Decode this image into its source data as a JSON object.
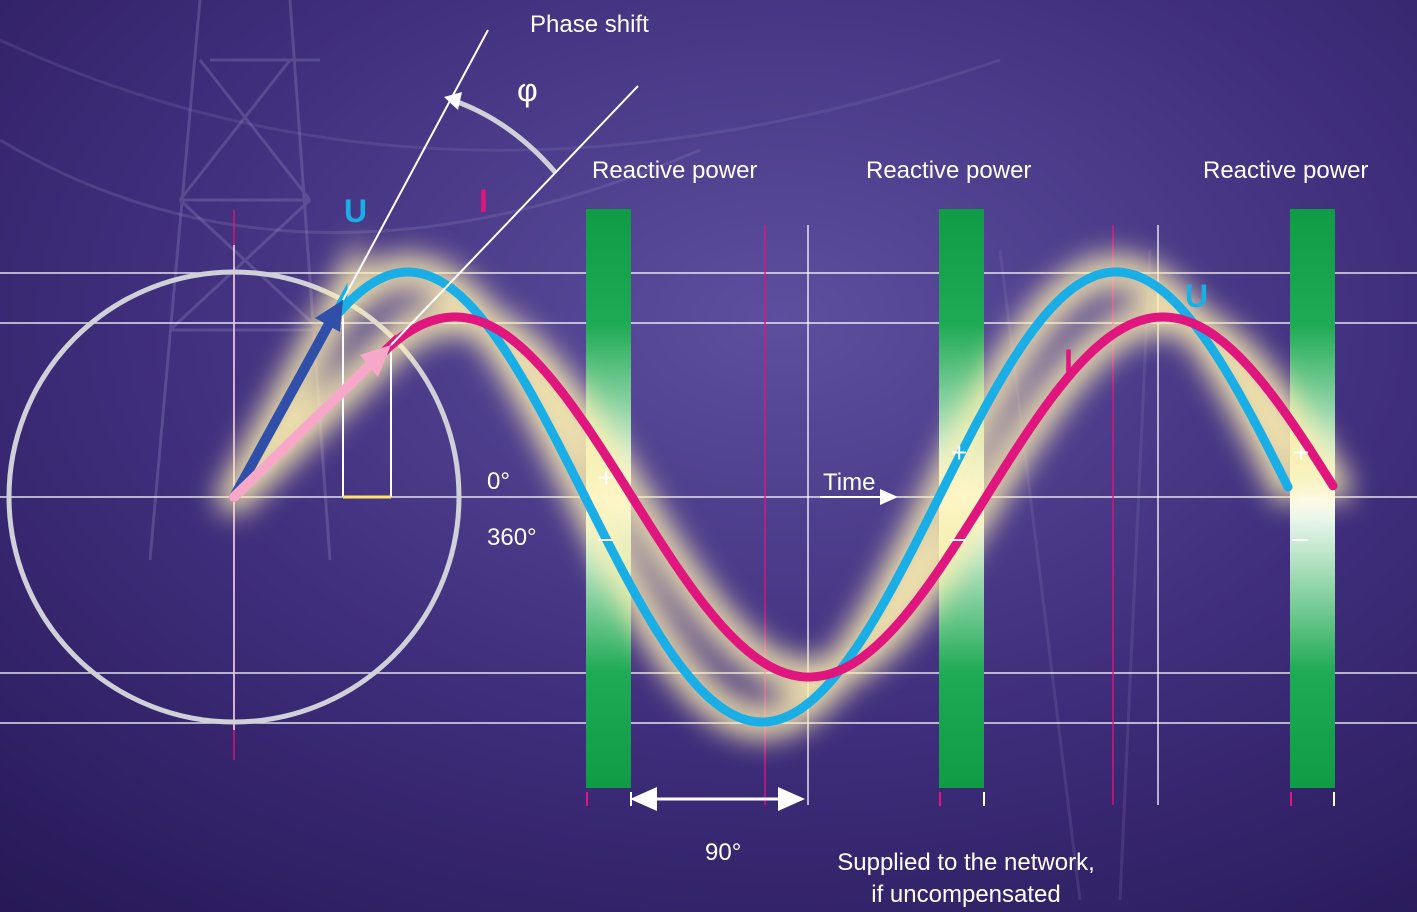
{
  "labels": {
    "phase_shift": "Phase shift",
    "phi": "φ",
    "reactive_power_1": "Reactive power",
    "reactive_power_2": "Reactive power",
    "reactive_power_3": "Reactive power",
    "u_left": "U",
    "i_left": "I",
    "u_right": "U",
    "i_right": "I",
    "zero_deg": "0°",
    "three_sixty_deg": "360°",
    "time": "Time",
    "ninety_deg": "90°",
    "supplied_line1": "Supplied to the network,",
    "supplied_line2": "if uncompensated",
    "plus": "+",
    "minus": "–"
  },
  "colors": {
    "voltage": "#19aee6",
    "current": "#e0157d",
    "voltage_vector": "#2f4fa8",
    "current_vector": "#f7a8c8",
    "reactive_band": "#12a54a",
    "grid": "#ffffff",
    "glow": "#fff2b0",
    "circle": "#d0d0d8"
  }
}
